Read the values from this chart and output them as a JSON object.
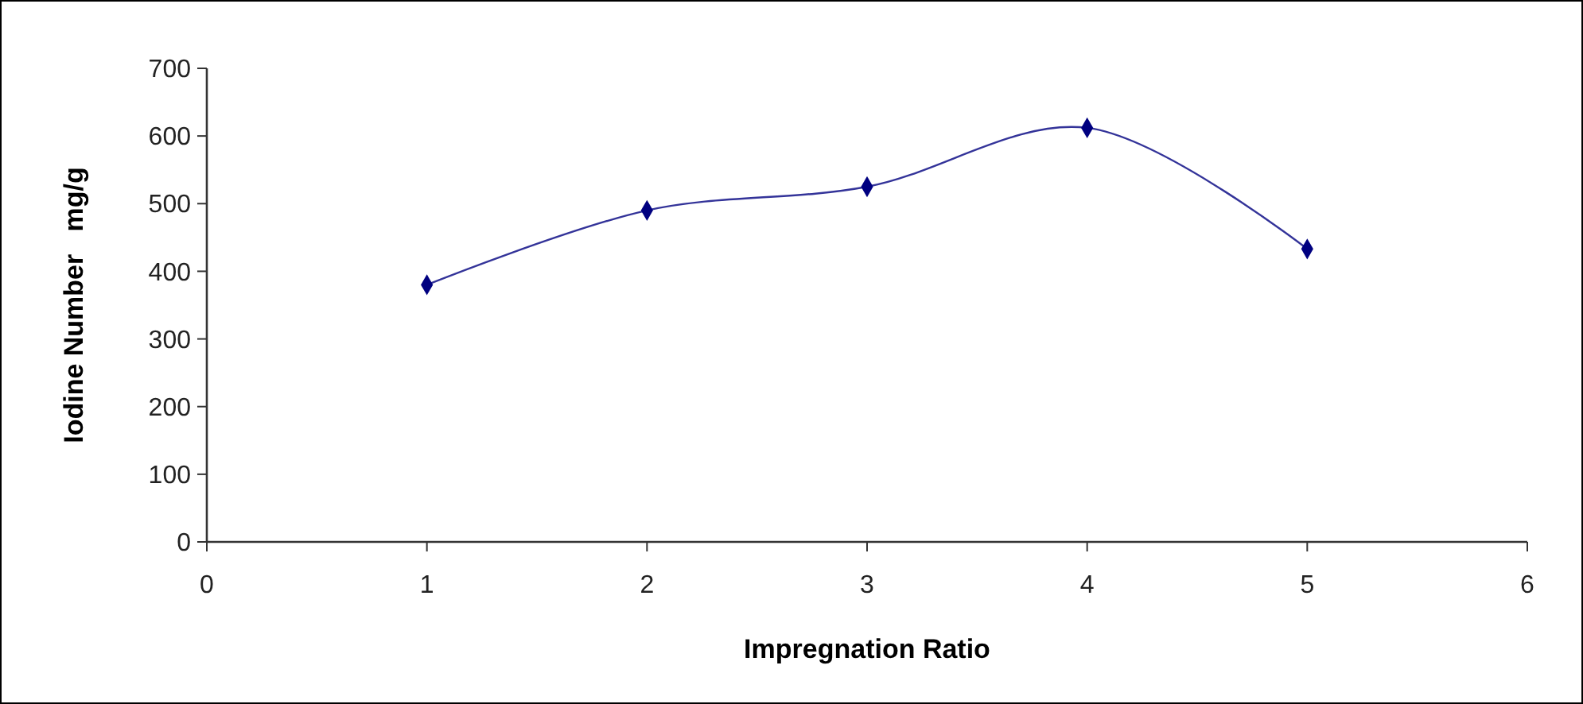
{
  "chart_data": {
    "type": "line",
    "xlabel": "Impregnation Ratio",
    "ylabel": "Iodine Number   mg/g",
    "x": [
      1,
      2,
      3,
      4,
      5
    ],
    "series": [
      {
        "color": "#000080",
        "values": [
          380,
          490,
          525,
          612,
          433
        ]
      }
    ],
    "xlim": [
      0,
      6
    ],
    "xticks": [
      0,
      1,
      2,
      3,
      4,
      5,
      6
    ],
    "ylim": [
      0,
      700
    ],
    "yticks": [
      0,
      100,
      200,
      300,
      400,
      500,
      600,
      700
    ],
    "grid": false,
    "marker": "diamond",
    "line_style": "solid"
  }
}
